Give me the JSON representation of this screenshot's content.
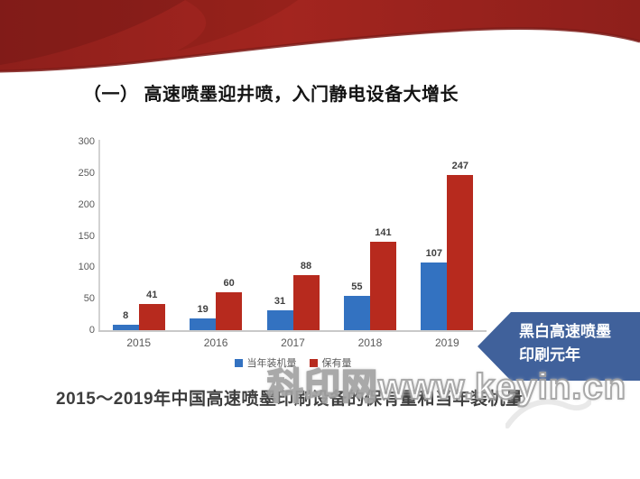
{
  "slide": {
    "title": "（一） 高速喷墨迎井喷，入门静电设备大增长",
    "caption": "2015～2019年中国高速喷墨印刷设备的保有量和当年装机量",
    "watermark": "科印网www.keyin.cn",
    "callout": {
      "line1": "黑白高速喷墨",
      "line2": "印刷元年",
      "color": "#40619B"
    },
    "header_colors": {
      "main": "#9A231E",
      "dark_fold": "#6F1614",
      "edge": "#7E1B17"
    }
  },
  "chart_data": {
    "type": "bar",
    "title": "",
    "xlabel": "",
    "ylabel": "",
    "categories": [
      "2015",
      "2016",
      "2017",
      "2018",
      "2019"
    ],
    "series": [
      {
        "name": "当年装机量",
        "color": "#3372C1",
        "values": [
          8,
          19,
          31,
          55,
          107
        ]
      },
      {
        "name": "保有量",
        "color": "#B72A1E",
        "values": [
          41,
          60,
          88,
          141,
          247
        ]
      }
    ],
    "ylim": [
      0,
      300
    ],
    "yticks": [
      0,
      50,
      100,
      150,
      200,
      250,
      300
    ],
    "grid": false,
    "legend_position": "bottom",
    "value_labels": true
  }
}
